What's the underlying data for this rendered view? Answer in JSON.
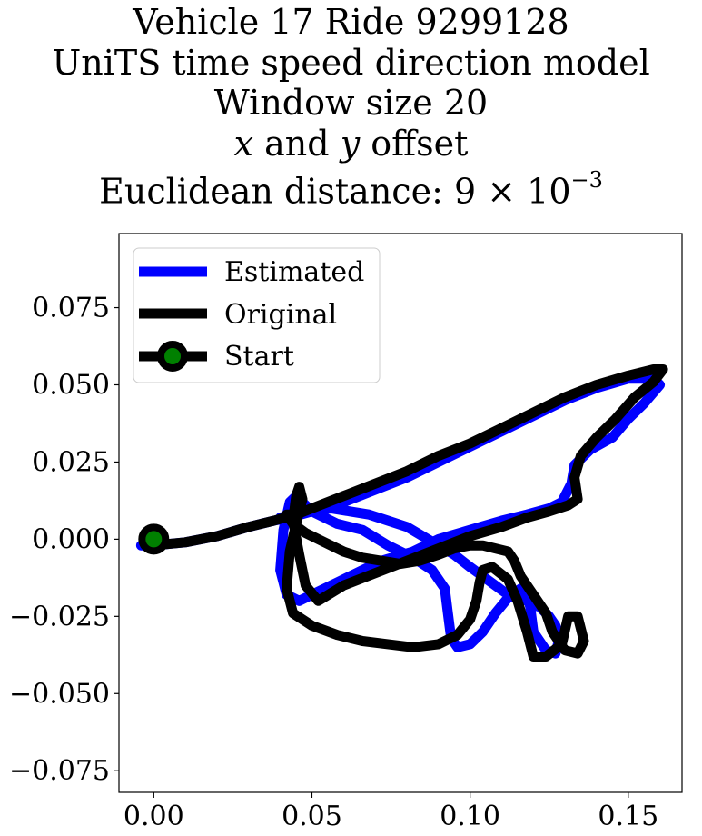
{
  "title": {
    "line1": "Vehicle 17 Ride 9299128",
    "line2": "UniTS time speed direction model",
    "line3": "Window size 20",
    "line4_x": "x",
    "line4_and": " and ",
    "line4_y": "y",
    "line4_rest": " offset",
    "line5_prefix": "Euclidean distance: 9",
    "line5_times": " × ",
    "line5_base": "10",
    "line5_exp": "−3"
  },
  "colors": {
    "estimated": "#0000ff",
    "original": "#000000",
    "start_marker_fill": "#008000"
  },
  "chart_data": {
    "type": "line",
    "title": "Vehicle 17 Ride 9299128 / UniTS time speed direction model / Window size 20 / x and y offset / Euclidean distance: 9×10^-3",
    "xlabel": "",
    "ylabel": "",
    "xlim": [
      -0.011,
      0.167
    ],
    "ylim": [
      -0.082,
      0.099
    ],
    "xticks": [
      0.0,
      0.05,
      0.1,
      0.15
    ],
    "xtick_labels": [
      "0.00",
      "0.05",
      "0.10",
      "0.15"
    ],
    "yticks": [
      -0.075,
      -0.05,
      -0.025,
      0.0,
      0.025,
      0.05,
      0.075
    ],
    "ytick_labels": [
      "−0.075",
      "−0.050",
      "−0.025",
      "0.000",
      "0.025",
      "0.050",
      "0.075"
    ],
    "grid": false,
    "legend_position": "upper left",
    "series": [
      {
        "name": "Estimated",
        "x": [
          -0.004,
          0.0,
          0.01,
          0.02,
          0.03,
          0.038,
          0.043,
          0.05,
          0.06,
          0.07,
          0.08,
          0.09,
          0.1,
          0.11,
          0.12,
          0.13,
          0.14,
          0.15,
          0.158,
          0.16,
          0.155,
          0.15,
          0.145,
          0.138,
          0.133,
          0.132,
          0.13,
          0.129,
          0.125,
          0.118,
          0.11,
          0.1,
          0.09,
          0.082,
          0.072,
          0.062,
          0.052,
          0.046,
          0.042,
          0.04,
          0.041,
          0.043,
          0.045,
          0.05,
          0.058,
          0.066,
          0.074,
          0.082,
          0.088,
          0.092,
          0.093,
          0.094,
          0.096,
          0.1,
          0.104,
          0.108,
          0.112,
          0.116,
          0.118,
          0.119,
          0.12,
          0.124,
          0.127,
          0.128,
          0.127,
          0.125,
          0.122,
          0.118,
          0.112,
          0.108,
          0.104,
          0.1,
          0.095,
          0.09,
          0.085,
          0.08,
          0.074,
          0.068,
          0.062,
          0.056,
          0.05,
          0.044,
          0.04
        ],
        "y": [
          -0.002,
          -0.002,
          -0.001,
          0.001,
          0.004,
          0.006,
          0.007,
          0.009,
          0.012,
          0.016,
          0.02,
          0.025,
          0.03,
          0.035,
          0.04,
          0.045,
          0.049,
          0.052,
          0.052,
          0.05,
          0.044,
          0.039,
          0.033,
          0.029,
          0.024,
          0.018,
          0.014,
          0.012,
          0.01,
          0.008,
          0.006,
          0.003,
          0.0,
          -0.004,
          -0.007,
          -0.012,
          -0.017,
          -0.02,
          -0.018,
          -0.01,
          0.003,
          0.012,
          0.014,
          0.009,
          0.005,
          0.003,
          -0.002,
          -0.006,
          -0.01,
          -0.016,
          -0.024,
          -0.032,
          -0.035,
          -0.034,
          -0.03,
          -0.024,
          -0.019,
          -0.016,
          -0.017,
          -0.022,
          -0.03,
          -0.036,
          -0.037,
          -0.033,
          -0.028,
          -0.025,
          -0.022,
          -0.02,
          -0.018,
          -0.015,
          -0.012,
          -0.009,
          -0.005,
          -0.002,
          0.001,
          0.004,
          0.006,
          0.008,
          0.009,
          0.01,
          0.009,
          0.008,
          0.007
        ]
      },
      {
        "name": "Original",
        "x": [
          0.0,
          0.01,
          0.02,
          0.03,
          0.038,
          0.045,
          0.05,
          0.06,
          0.07,
          0.08,
          0.09,
          0.1,
          0.11,
          0.12,
          0.13,
          0.14,
          0.15,
          0.158,
          0.161,
          0.158,
          0.152,
          0.146,
          0.14,
          0.135,
          0.133,
          0.134,
          0.131,
          0.125,
          0.118,
          0.11,
          0.1,
          0.09,
          0.08,
          0.07,
          0.06,
          0.052,
          0.048,
          0.046,
          0.044,
          0.045,
          0.046,
          0.047,
          0.045,
          0.043,
          0.042,
          0.044,
          0.05,
          0.058,
          0.066,
          0.074,
          0.082,
          0.09,
          0.096,
          0.1,
          0.102,
          0.103,
          0.104,
          0.107,
          0.112,
          0.115,
          0.118,
          0.12,
          0.124,
          0.129,
          0.131,
          0.134,
          0.136,
          0.134,
          0.13,
          0.126,
          0.124,
          0.12,
          0.116,
          0.114,
          0.112,
          0.108,
          0.104,
          0.1,
          0.095,
          0.09,
          0.084,
          0.078,
          0.072,
          0.066,
          0.06,
          0.054,
          0.048,
          0.044,
          0.042,
          0.045
        ],
        "y": [
          -0.002,
          -0.001,
          0.001,
          0.004,
          0.006,
          0.008,
          0.01,
          0.014,
          0.018,
          0.022,
          0.027,
          0.031,
          0.036,
          0.041,
          0.046,
          0.05,
          0.053,
          0.055,
          0.055,
          0.051,
          0.046,
          0.039,
          0.033,
          0.027,
          0.02,
          0.013,
          0.011,
          0.009,
          0.007,
          0.004,
          0.001,
          -0.003,
          -0.007,
          -0.011,
          -0.015,
          -0.02,
          -0.015,
          -0.005,
          0.006,
          0.014,
          0.017,
          0.013,
          0.005,
          -0.004,
          -0.016,
          -0.024,
          -0.028,
          -0.031,
          -0.033,
          -0.034,
          -0.035,
          -0.034,
          -0.031,
          -0.026,
          -0.02,
          -0.014,
          -0.01,
          -0.009,
          -0.013,
          -0.02,
          -0.03,
          -0.038,
          -0.038,
          -0.034,
          -0.025,
          -0.025,
          -0.033,
          -0.037,
          -0.036,
          -0.03,
          -0.024,
          -0.018,
          -0.012,
          -0.007,
          -0.004,
          -0.003,
          -0.002,
          -0.002,
          -0.003,
          -0.005,
          -0.007,
          -0.008,
          -0.007,
          -0.006,
          -0.004,
          -0.001,
          0.002,
          0.005,
          0.008,
          0.008
        ]
      },
      {
        "name": "Start",
        "x": [
          0.0
        ],
        "y": [
          0.0
        ]
      }
    ],
    "legend": [
      "Estimated",
      "Original",
      "Start"
    ]
  }
}
